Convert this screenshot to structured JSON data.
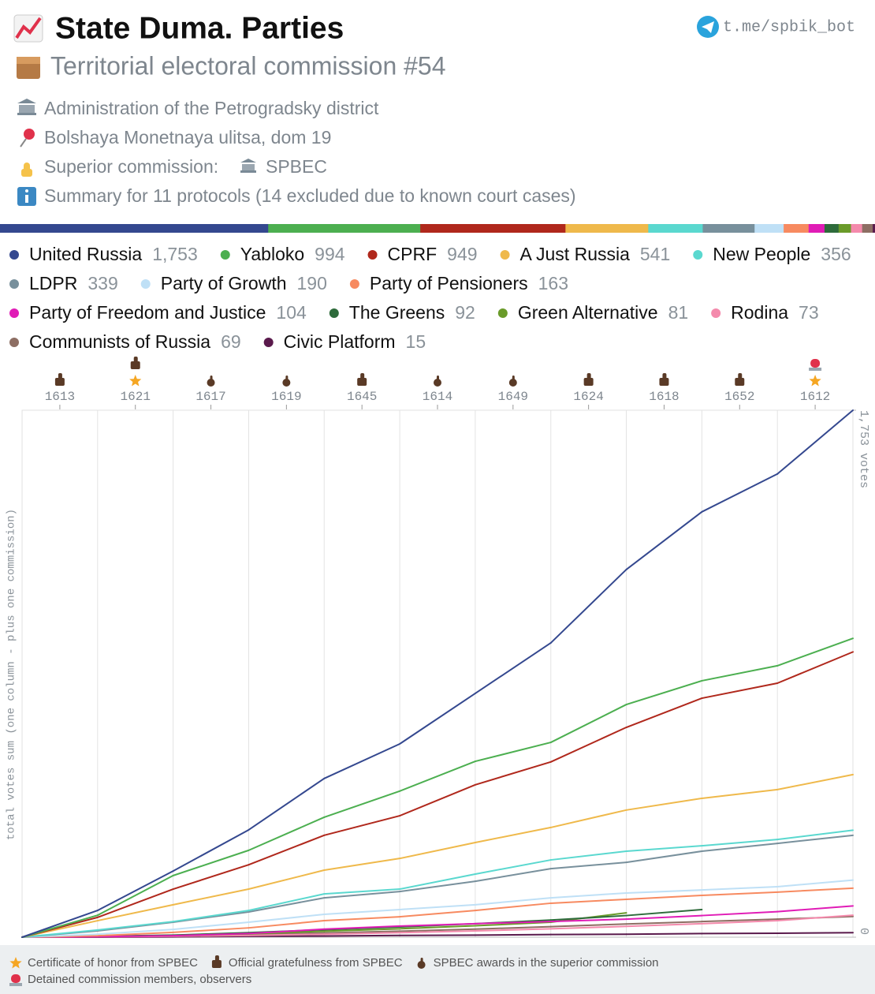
{
  "header": {
    "title": "State Duma. Parties",
    "subtitle": "Territorial electoral commission #54",
    "link": "t.me/spbik_bot",
    "lines": [
      "Administration of the Petrogradsky district",
      "Bolshaya Monetnaya ulitsa, dom 19"
    ],
    "superior_label": "Superior commission:",
    "superior_value": "SPBEC",
    "summary": "Summary for 11 protocols (14 excluded due to known court cases)"
  },
  "chart_data": {
    "type": "line",
    "ylabel": "total votes sum (one column - plus one commission)",
    "categories": [
      "1613",
      "1621",
      "1617",
      "1619",
      "1645",
      "1614",
      "1649",
      "1624",
      "1618",
      "1652",
      "1612"
    ],
    "ylim": [
      0,
      1753
    ],
    "yticks": [
      0,
      {
        "value": 1753,
        "label": "1,753 votes"
      }
    ],
    "grid": true,
    "series": [
      {
        "name": "United Russia",
        "color": "#34488f",
        "total": 1753,
        "total_label": "1,753",
        "values": [
          89,
          131,
          137,
          171,
          115,
          168,
          168,
          244,
          192,
          126,
          212
        ]
      },
      {
        "name": "Yabloko",
        "color": "#4caf50",
        "total": 994,
        "values": [
          73,
          132,
          84,
          110,
          87,
          99,
          63,
          126,
          79,
          50,
          91
        ]
      },
      {
        "name": "CPRF",
        "color": "#b0281c",
        "total": 949,
        "values": [
          66,
          94,
          81,
          98,
          65,
          103,
          76,
          115,
          97,
          50,
          104
        ]
      },
      {
        "name": "A Just Russia",
        "color": "#efb94b",
        "total": 541,
        "values": [
          55,
          53,
          52,
          63,
          39,
          53,
          50,
          58,
          39,
          29,
          50
        ]
      },
      {
        "name": "New People",
        "color": "#5ad8cf",
        "total": 356,
        "values": [
          24,
          28,
          37,
          55,
          16,
          50,
          47,
          29,
          18,
          21,
          31
        ]
      },
      {
        "name": "LDPR",
        "color": "#78909c",
        "total": 339,
        "values": [
          21,
          29,
          34,
          47,
          21,
          34,
          42,
          21,
          37,
          26,
          27
        ]
      },
      {
        "name": "Party of Growth",
        "color": "#bfe0f6",
        "total": 190,
        "values": [
          10,
          16,
          24,
          26,
          16,
          16,
          23,
          16,
          10,
          11,
          22
        ]
      },
      {
        "name": "Party of Pensioners",
        "color": "#f78a60",
        "total": 163,
        "values": [
          5,
          11,
          15,
          24,
          13,
          21,
          24,
          13,
          13,
          11,
          13
        ]
      },
      {
        "name": "Party of Freedom and Justice",
        "color": "#e01cb6",
        "total": 104,
        "values": [
          2,
          3,
          7,
          15,
          10,
          8,
          7,
          8,
          12,
          13,
          19
        ]
      },
      {
        "name": "The Greens",
        "color": "#2e6b3b",
        "total": 92,
        "values": [
          3,
          4,
          8,
          10,
          9,
          11,
          12,
          15,
          20,
          null,
          null
        ]
      },
      {
        "name": "Green Alternative",
        "color": "#6a9b2a",
        "total": 81,
        "values": [
          2,
          3,
          6,
          9,
          8,
          10,
          12,
          31,
          null,
          null,
          null
        ]
      },
      {
        "name": "Rodina",
        "color": "#f48aac",
        "total": 73,
        "values": [
          1,
          2,
          3,
          4,
          5,
          6,
          7,
          8,
          9,
          10,
          18
        ]
      },
      {
        "name": "Communists of Russia",
        "color": "#8d6e63",
        "total": 69,
        "values": [
          2,
          3,
          4,
          5,
          6,
          7,
          8,
          9,
          8,
          8,
          9
        ]
      },
      {
        "name": "Civic Platform",
        "color": "#5a1a4c",
        "total": 15,
        "values": [
          0,
          1,
          2,
          1,
          2,
          1,
          2,
          1,
          2,
          1,
          2
        ]
      }
    ]
  },
  "notes": [
    "Certificate of honor from SPBEC",
    "Official gratefulness from SPBEC",
    "SPBEC awards in the superior commission",
    "Detained commission members, observers"
  ]
}
